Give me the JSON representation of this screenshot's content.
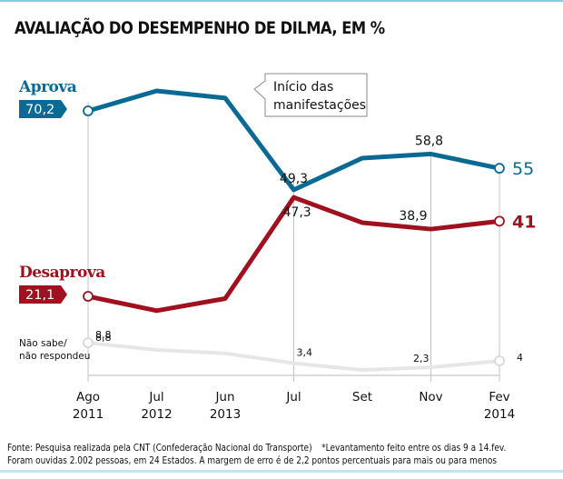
{
  "chart_data": {
    "type": "line",
    "title": "AVALIAÇÃO DO DESEMPENHO DE DILMA, EM %",
    "xlabel": "",
    "ylabel": "",
    "ylim": [
      0,
      80
    ],
    "grid": false,
    "categories": [
      {
        "line1": "Ago",
        "line2": "2011"
      },
      {
        "line1": "Jul",
        "line2": "2012"
      },
      {
        "line1": "Jun",
        "line2": "2013"
      },
      {
        "line1": "Jul",
        "line2": ""
      },
      {
        "line1": "Set",
        "line2": ""
      },
      {
        "line1": "Nov",
        "line2": ""
      },
      {
        "line1": "Fev",
        "line2": "2014"
      }
    ],
    "guides": [
      0,
      3,
      5,
      6
    ],
    "series": [
      {
        "name": "Aprova",
        "color": "#0a6a94",
        "values": [
          70.2,
          75.5,
          73.6,
          49.3,
          57.7,
          58.8,
          55
        ],
        "labels": [
          "70,2",
          null,
          null,
          "49,3",
          null,
          "58,8",
          "55"
        ]
      },
      {
        "name": "Desaprova",
        "color": "#a0111f",
        "values": [
          21.1,
          17.3,
          20.5,
          47.3,
          40.6,
          38.9,
          41
        ],
        "labels": [
          "21,1",
          null,
          null,
          "47,3",
          null,
          "38,9",
          "41"
        ]
      },
      {
        "name": "Não sabe/ não respondeu",
        "name_line1": "Não sabe/",
        "name_line2": "não respondeu",
        "color": "#e6e6e6",
        "values": [
          8.8,
          6.9,
          6.0,
          3.4,
          1.6,
          2.3,
          4
        ],
        "labels": [
          "8,8",
          null,
          null,
          "3,4",
          null,
          "2,3",
          "4"
        ]
      }
    ],
    "annotation": {
      "line1": "Início das",
      "line2": "manifestações",
      "points_to_category": 2
    }
  },
  "footer": {
    "source": "Fonte: Pesquisa realizada pela CNT (Confederação Nacional do Transporte)",
    "note": "*Levantamento feito entre os dias 9 a 14.fev.",
    "line2": "Foram ouvidas 2.002 pessoas, em 24 Estados. A margem de erro é de 2,2 pontos percentuais para mais ou para menos"
  }
}
